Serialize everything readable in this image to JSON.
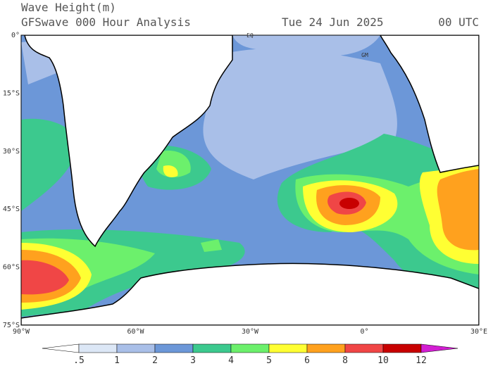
{
  "header": {
    "title": "Wave Height(m)",
    "subtitle": "GFSwave 000 Hour Analysis",
    "date": "Tue 24 Jun 2025",
    "time": "00 UTC"
  },
  "map": {
    "lat_labels": [
      "0°",
      "15°S",
      "30°S",
      "45°S",
      "60°S",
      "75°S"
    ],
    "lon_labels": [
      "90°W",
      "60°W",
      "30°W",
      "0°",
      "30°E"
    ],
    "annotations": [
      "EQ",
      "GM"
    ]
  },
  "colorbar": {
    "labels": [
      ".5",
      "1",
      "2",
      "3",
      "4",
      "5",
      "6",
      "8",
      "10",
      "12"
    ],
    "colors": [
      "#ffffff",
      "#dce7f6",
      "#a9bfe8",
      "#6c97d8",
      "#3cc98e",
      "#6cf06c",
      "#ffff33",
      "#ffa11e",
      "#f04646",
      "#c80000",
      "#d21ed2"
    ]
  }
}
